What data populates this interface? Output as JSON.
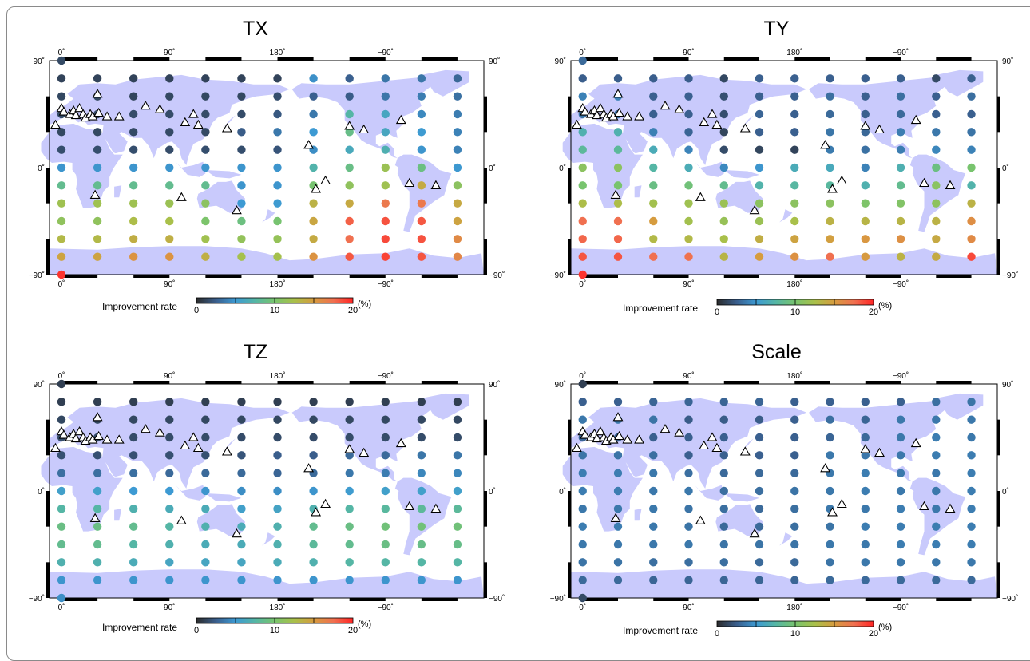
{
  "figure": {
    "colors": {
      "land": "#c9cafc",
      "frame": "#000000",
      "triangle_stroke": "#000000",
      "triangle_fill": "#ffffff"
    },
    "colorscale": [
      [
        0,
        "#2b2b2b"
      ],
      [
        2.5,
        "#3a5e8c"
      ],
      [
        5,
        "#3d9ad3"
      ],
      [
        7.5,
        "#55b6a5"
      ],
      [
        10,
        "#78c46e"
      ],
      [
        12.5,
        "#a9c04a"
      ],
      [
        15,
        "#d69c3f"
      ],
      [
        17.5,
        "#f07050"
      ],
      [
        20,
        "#ff2525"
      ]
    ]
  },
  "grid": {
    "longitudes": [
      0,
      30,
      60,
      90,
      120,
      150,
      180,
      210,
      240,
      270,
      300,
      330
    ],
    "latitudes": [
      75,
      60,
      45,
      30,
      15,
      0,
      -15,
      -30,
      -45,
      -60,
      -75
    ]
  },
  "stations": [
    [
      0,
      50
    ],
    [
      2,
      47
    ],
    [
      7,
      45
    ],
    [
      10,
      48
    ],
    [
      12,
      44
    ],
    [
      15,
      50
    ],
    [
      18,
      45
    ],
    [
      20,
      42
    ],
    [
      24,
      45
    ],
    [
      26,
      43
    ],
    [
      30,
      62
    ],
    [
      31,
      46
    ],
    [
      38,
      43
    ],
    [
      48,
      43
    ],
    [
      70,
      52
    ],
    [
      82,
      49
    ],
    [
      103,
      38
    ],
    [
      110,
      45
    ],
    [
      114,
      36
    ],
    [
      138,
      33
    ],
    [
      100,
      -25
    ],
    [
      146,
      -36
    ],
    [
      206,
      19
    ],
    [
      212,
      -18
    ],
    [
      220,
      -11
    ],
    [
      240,
      35
    ],
    [
      252,
      32
    ],
    [
      283,
      40
    ],
    [
      290,
      -13
    ],
    [
      312,
      -15
    ],
    [
      28,
      -23
    ],
    [
      -5,
      36
    ]
  ],
  "panels": [
    {
      "title": "TX",
      "lon_labels": [
        "0˚",
        "90˚",
        "180˚",
        "−90˚"
      ],
      "lat_labels": {
        "top": "90˚",
        "mid": "0˚",
        "bottom": "−90˚"
      },
      "colorbar": {
        "label": "Improvement rate",
        "ticks": [
          "0",
          "10",
          "20"
        ],
        "unit": "(%)"
      },
      "rates": [
        [
          1.2,
          1.2,
          1.2,
          1.2,
          1.2,
          1.2,
          1.2,
          4.6,
          2.6,
          3.5,
          3.5,
          2.9
        ],
        [
          1.4,
          1.4,
          1.3,
          1.4,
          1.4,
          1.4,
          1.7,
          2.6,
          2.4,
          3.5,
          3.8,
          3.3
        ],
        [
          1.6,
          1.6,
          1.6,
          1.6,
          1.6,
          1.6,
          2.2,
          3.6,
          7.5,
          6.0,
          4.3,
          3.8
        ],
        [
          1.4,
          1.4,
          1.5,
          1.5,
          1.5,
          2.4,
          3.6,
          5.0,
          8.8,
          6.1,
          5.1,
          4.0
        ],
        [
          1.7,
          1.7,
          1.7,
          1.6,
          1.7,
          1.7,
          2.0,
          4.5,
          6.3,
          6.9,
          4.8,
          4.0
        ],
        [
          4.8,
          4.8,
          4.8,
          4.8,
          4.8,
          4.8,
          4.8,
          7.2,
          8.9,
          11.8,
          9.1,
          4.9
        ],
        [
          8.5,
          8.5,
          8.5,
          8.5,
          8.5,
          4.8,
          4.8,
          9.9,
          11.2,
          12.0,
          14.0,
          11.0
        ],
        [
          12.0,
          12.0,
          12.0,
          11.8,
          11.0,
          5.0,
          5.1,
          13.5,
          14.1,
          17.0,
          17.0,
          14.1
        ],
        [
          11.2,
          11.2,
          12.7,
          12.5,
          10.2,
          9.2,
          9.9,
          14.3,
          18.0,
          18.5,
          18.3,
          14.5
        ],
        [
          13.0,
          13.0,
          13.8,
          13.7,
          12.1,
          11.4,
          11.5,
          14.0,
          17.5,
          18.8,
          18.5,
          16.0
        ],
        [
          14.5,
          14.5,
          15.5,
          15.5,
          13.7,
          12.3,
          12.3,
          15.5,
          18.3,
          19.0,
          18.4,
          16.2
        ]
      ],
      "pole_marks": [
        1.5,
        19.5
      ]
    },
    {
      "title": "TY",
      "lon_labels": [
        "0˚",
        "90˚",
        "180˚",
        "−90˚"
      ],
      "lat_labels": {
        "top": "90˚",
        "mid": "0˚",
        "bottom": "−90˚"
      },
      "colorbar": {
        "label": "Improvement rate",
        "ticks": [
          "0",
          "10",
          "20"
        ],
        "unit": "(%)"
      },
      "rates": [
        [
          2.5,
          2.5,
          2.5,
          2.5,
          1.4,
          2.6,
          2.6,
          2.6,
          2.6,
          2.6,
          1.5,
          2.6
        ],
        [
          4.0,
          4.0,
          2.6,
          2.6,
          1.8,
          2.6,
          2.6,
          3.2,
          2.6,
          3.2,
          2.6,
          3.2
        ],
        [
          3.4,
          3.4,
          2.6,
          2.6,
          1.7,
          2.8,
          2.6,
          3.0,
          2.6,
          3.0,
          2.6,
          2.6
        ],
        [
          7.0,
          7.0,
          3.9,
          2.8,
          1.3,
          2.6,
          2.6,
          3.5,
          2.9,
          3.8,
          3.6,
          3.4
        ],
        [
          8.0,
          8.0,
          6.5,
          4.1,
          1.6,
          1.3,
          1.2,
          3.7,
          3.3,
          3.8,
          4.2,
          4.0
        ],
        [
          11.0,
          11.0,
          7.5,
          6.6,
          4.3,
          4.8,
          6.5,
          6.3,
          4.0,
          6.9,
          9.1,
          10.0
        ],
        [
          10.0,
          10.0,
          9.0,
          9.5,
          8.5,
          7.2,
          7.7,
          7.8,
          7.0,
          8.5,
          10.9,
          7.2
        ],
        [
          12.7,
          12.7,
          12.2,
          12.0,
          11.8,
          11.0,
          11.0,
          11.0,
          10.3,
          10.5,
          11.1,
          13.5
        ],
        [
          17.5,
          17.5,
          15.0,
          12.2,
          11.6,
          11.8,
          12.5,
          13.5,
          13.3,
          13.3,
          13.5,
          15.8
        ],
        [
          17.8,
          17.8,
          13.0,
          13.0,
          12.5,
          13.8,
          14.5,
          14.8,
          15.3,
          15.7,
          14.1,
          16.0
        ],
        [
          18.4,
          18.4,
          17.5,
          17.4,
          13.3,
          15.0,
          15.6,
          17.5,
          15.1,
          13.5,
          14.0,
          18.8
        ]
      ],
      "pole_marks": [
        3.0,
        19.5
      ]
    },
    {
      "title": "TZ",
      "lon_labels": [
        "0˚",
        "90˚",
        "180˚",
        "−90˚"
      ],
      "lat_labels": {
        "top": "90˚",
        "mid": "0˚",
        "bottom": "−90˚"
      },
      "colorbar": {
        "label": "Improvement rate",
        "ticks": [
          "0",
          "10",
          "20"
        ],
        "unit": "(%)"
      },
      "rates": [
        [
          1.0,
          1.0,
          1.0,
          1.0,
          1.0,
          1.0,
          1.0,
          1.0,
          1.0,
          1.0,
          1.0,
          1.0
        ],
        [
          1.4,
          1.4,
          1.4,
          1.4,
          1.4,
          1.4,
          1.4,
          1.4,
          1.4,
          1.4,
          1.4,
          1.4
        ],
        [
          1.6,
          1.6,
          1.6,
          1.6,
          1.6,
          1.6,
          1.6,
          1.6,
          1.6,
          1.6,
          1.6,
          1.6
        ],
        [
          1.8,
          1.8,
          1.8,
          1.8,
          1.8,
          2.0,
          2.5,
          2.5,
          3.0,
          3.0,
          3.5,
          3.5
        ],
        [
          3.2,
          3.2,
          3.2,
          3.0,
          3.0,
          3.0,
          2.8,
          3.0,
          3.6,
          3.8,
          4.2,
          4.2
        ],
        [
          5.5,
          5.5,
          5.0,
          5.0,
          4.8,
          4.5,
          4.5,
          4.8,
          5.2,
          5.5,
          5.5,
          5.5
        ],
        [
          7.5,
          7.5,
          7.0,
          6.5,
          6.5,
          5.5,
          5.8,
          7.0,
          7.5,
          7.8,
          8.0,
          8.0
        ],
        [
          9.0,
          9.0,
          8.5,
          7.5,
          7.0,
          6.5,
          7.0,
          8.5,
          9.0,
          9.5,
          9.5,
          9.5
        ],
        [
          8.5,
          8.5,
          7.5,
          7.0,
          6.5,
          6.5,
          7.0,
          8.0,
          8.5,
          9.0,
          8.8,
          8.8
        ],
        [
          7.0,
          7.0,
          6.5,
          6.0,
          6.0,
          6.0,
          6.5,
          7.0,
          7.5,
          7.5,
          7.5,
          7.5
        ],
        [
          4.8,
          4.8,
          4.8,
          4.8,
          4.8,
          4.8,
          4.8,
          4.8,
          4.8,
          4.8,
          4.8,
          4.8
        ]
      ],
      "pole_marks": [
        1.0,
        4.5
      ]
    },
    {
      "title": "Scale",
      "lon_labels": [
        "0˚",
        "90˚",
        "180˚",
        "−90˚"
      ],
      "lat_labels": {
        "top": "90˚",
        "mid": "0˚",
        "bottom": "−90˚"
      },
      "colorbar": {
        "label": "Improvement rate",
        "ticks": [
          "0",
          "10",
          "20"
        ],
        "unit": "(%)"
      },
      "rates": [
        [
          2.6,
          2.6,
          2.8,
          2.8,
          2.8,
          2.8,
          2.6,
          2.6,
          2.6,
          2.6,
          3.2,
          3.4
        ],
        [
          3.6,
          3.6,
          3.4,
          2.4,
          2.4,
          2.4,
          2.6,
          3.2,
          2.8,
          3.6,
          3.6,
          3.6
        ],
        [
          2.8,
          2.8,
          2.6,
          2.6,
          2.6,
          2.6,
          2.6,
          2.8,
          3.0,
          3.6,
          3.8,
          3.6
        ],
        [
          3.4,
          3.4,
          3.2,
          2.6,
          2.6,
          2.6,
          2.6,
          3.6,
          3.6,
          3.6,
          3.8,
          3.8
        ],
        [
          3.8,
          3.8,
          3.6,
          3.2,
          3.0,
          3.0,
          3.0,
          3.6,
          3.8,
          3.6,
          3.6,
          3.8
        ],
        [
          3.8,
          3.8,
          3.6,
          3.6,
          3.2,
          3.2,
          3.4,
          3.6,
          3.8,
          3.6,
          3.6,
          3.8
        ],
        [
          3.6,
          3.6,
          3.6,
          3.4,
          3.2,
          3.0,
          3.2,
          3.6,
          3.6,
          3.8,
          3.6,
          3.8
        ],
        [
          3.8,
          3.8,
          3.6,
          3.4,
          3.0,
          3.0,
          3.2,
          3.4,
          3.8,
          3.8,
          3.8,
          3.8
        ],
        [
          3.6,
          3.6,
          3.6,
          3.6,
          3.4,
          3.4,
          3.4,
          3.6,
          3.6,
          3.8,
          3.8,
          3.8
        ],
        [
          3.4,
          3.4,
          3.2,
          3.2,
          3.2,
          3.0,
          3.0,
          3.4,
          3.6,
          3.6,
          3.6,
          3.6
        ],
        [
          3.0,
          3.0,
          2.8,
          2.8,
          2.8,
          2.8,
          2.8,
          3.0,
          3.0,
          3.0,
          3.0,
          3.0
        ]
      ],
      "pole_marks": [
        1.0,
        1.5
      ]
    }
  ]
}
